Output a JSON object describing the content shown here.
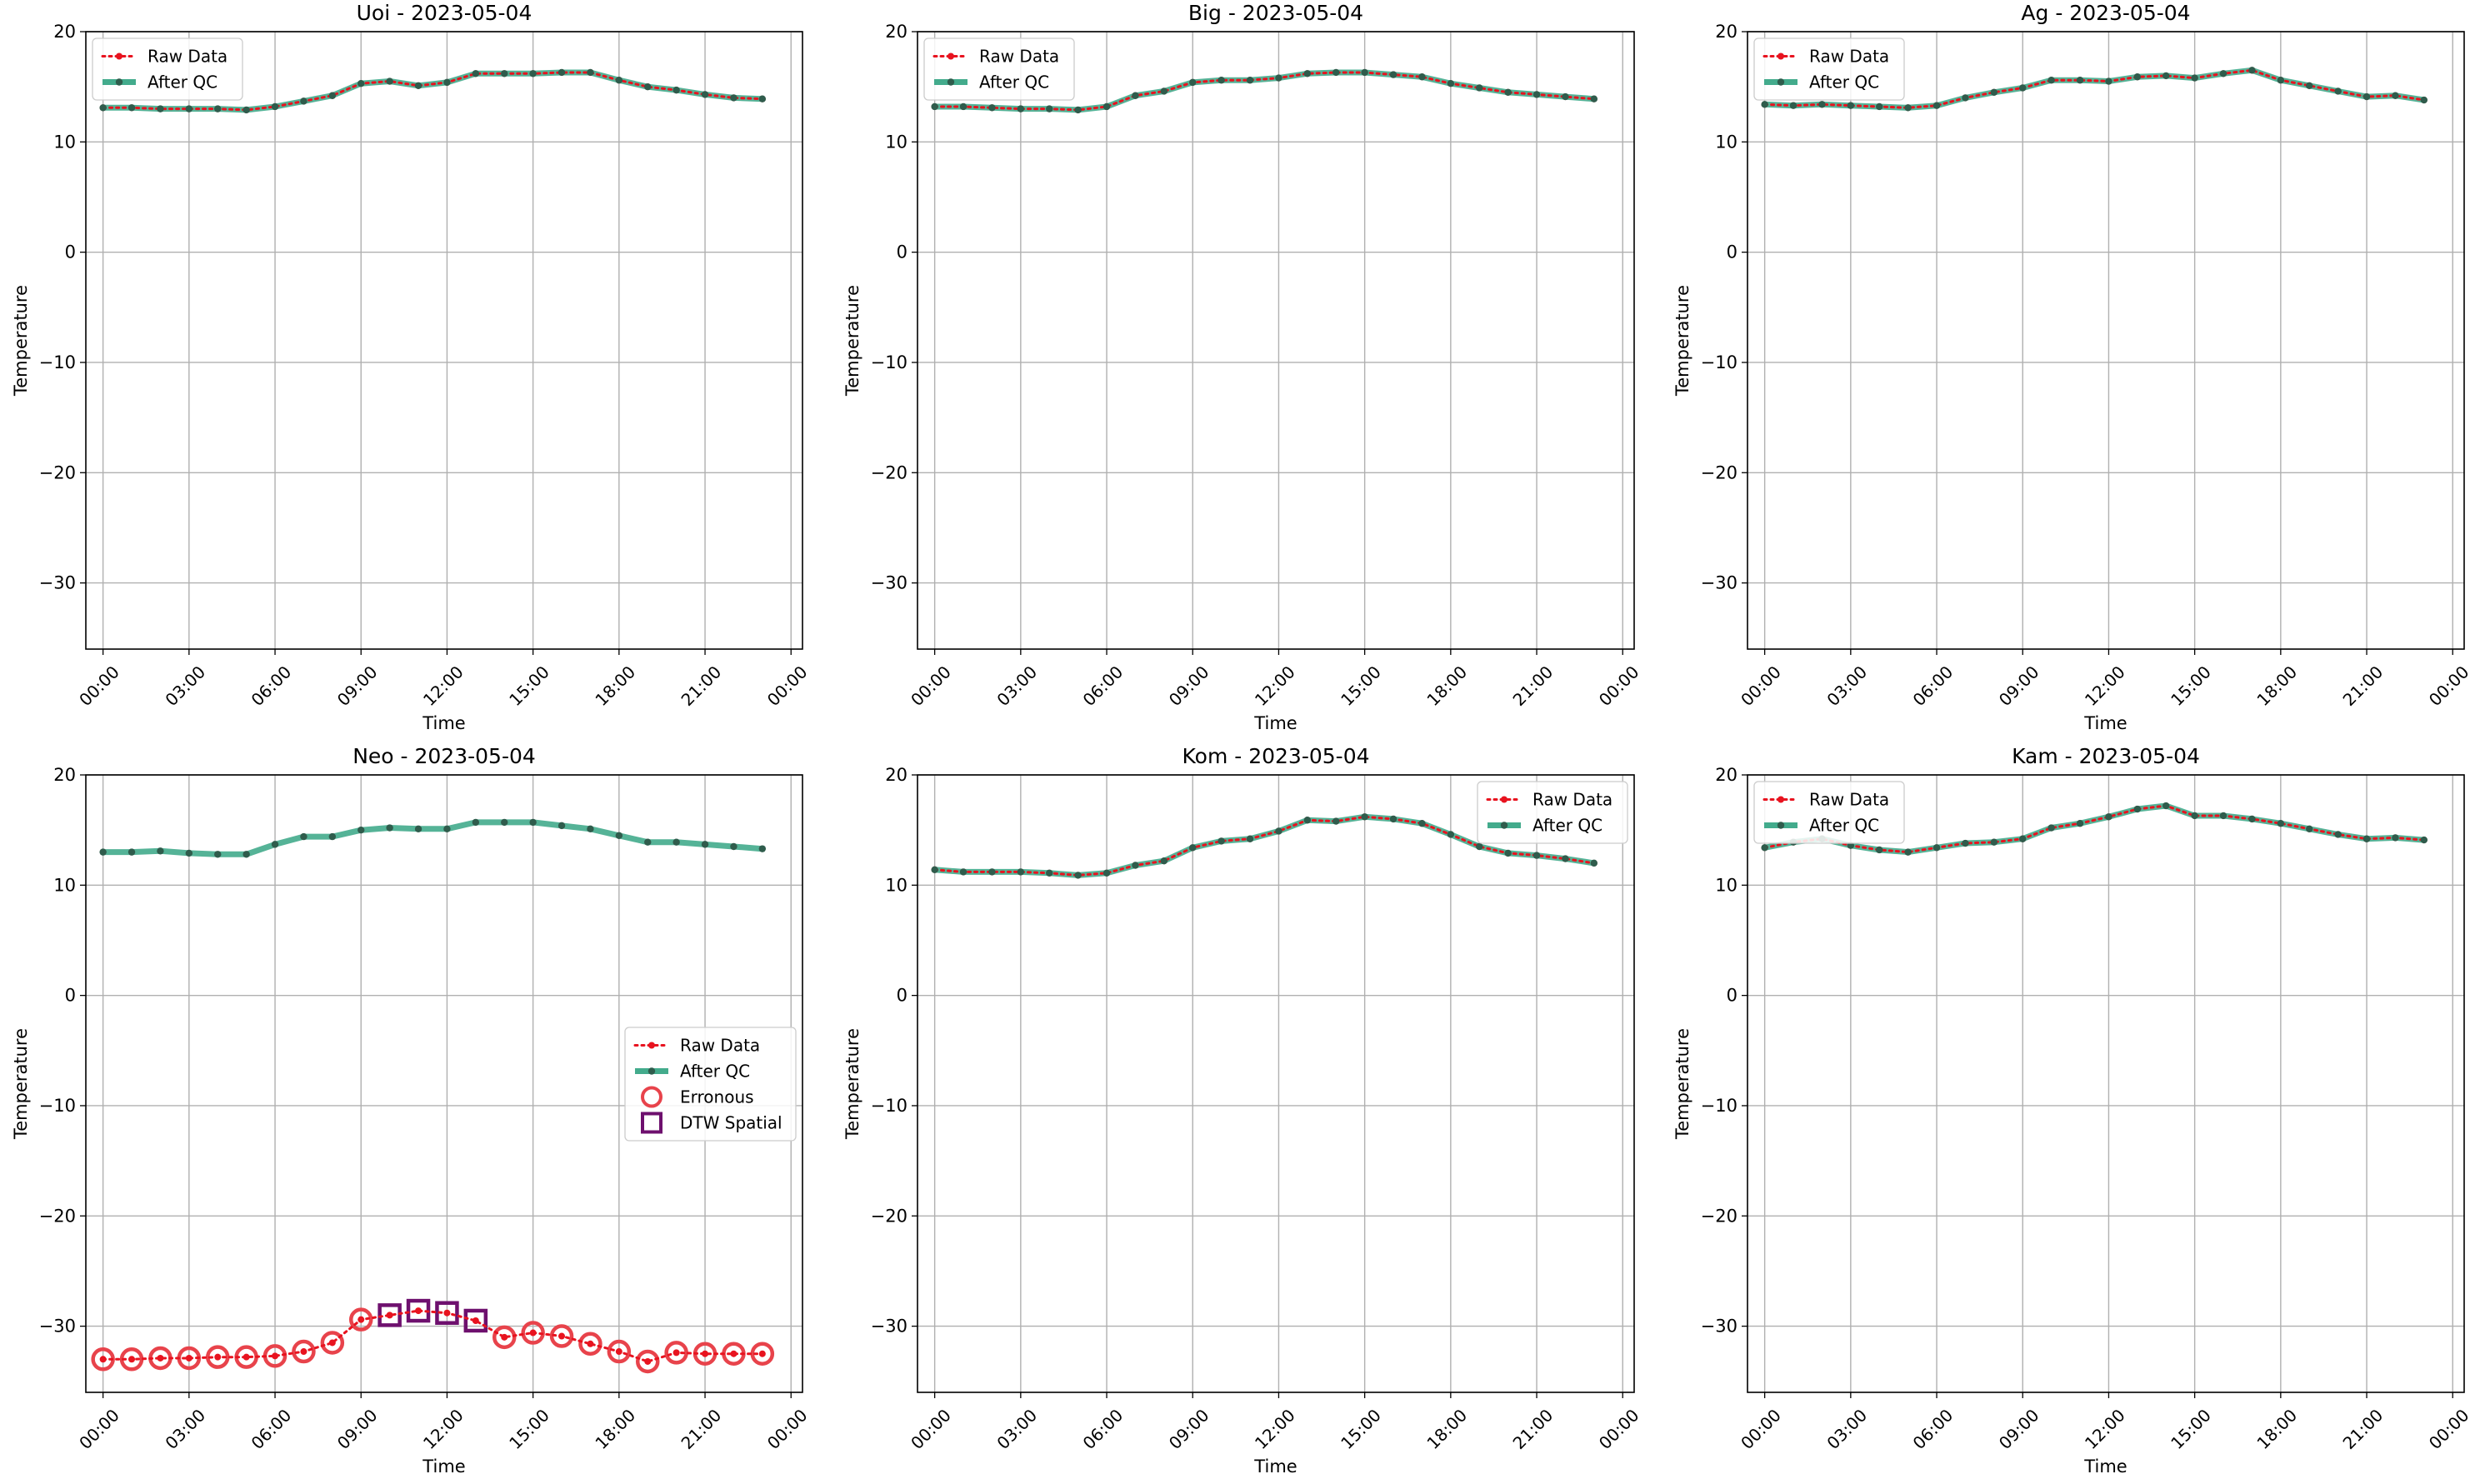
{
  "chart_data": [
    {
      "type": "line",
      "title": "Uoi - 2023-05-04",
      "xlabel": "Time",
      "ylabel": "Temperature",
      "ylim": [
        -36,
        20
      ],
      "xlim": [
        -0.6,
        24.4
      ],
      "xticks": [
        0,
        3,
        6,
        9,
        12,
        15,
        18,
        21,
        24
      ],
      "xtick_labels": [
        "00:00",
        "03:00",
        "06:00",
        "09:00",
        "12:00",
        "15:00",
        "18:00",
        "21:00",
        "00:00"
      ],
      "yticks": [
        20,
        10,
        0,
        -10,
        -20,
        -30
      ],
      "ytick_labels": [
        "20",
        "10",
        "0",
        "−10",
        "−20",
        "−30"
      ],
      "grid": true,
      "legend_position": "top-left",
      "legend": [
        "Raw Data",
        "After QC"
      ],
      "x": [
        0,
        1,
        2,
        3,
        4,
        5,
        6,
        7,
        8,
        9,
        10,
        11,
        12,
        13,
        14,
        15,
        16,
        17,
        18,
        19,
        20,
        21,
        22,
        23
      ],
      "series": [
        {
          "name": "Raw Data",
          "values": [
            13.1,
            13.1,
            13.0,
            13.0,
            13.0,
            12.9,
            13.2,
            13.7,
            14.2,
            15.3,
            15.5,
            15.1,
            15.4,
            16.2,
            16.2,
            16.2,
            16.3,
            16.3,
            15.6,
            15.0,
            14.7,
            14.3,
            14.0,
            13.9
          ]
        },
        {
          "name": "After QC",
          "values": [
            13.1,
            13.1,
            13.0,
            13.0,
            13.0,
            12.9,
            13.2,
            13.7,
            14.2,
            15.3,
            15.5,
            15.1,
            15.4,
            16.2,
            16.2,
            16.2,
            16.3,
            16.3,
            15.6,
            15.0,
            14.7,
            14.3,
            14.0,
            13.9
          ]
        }
      ]
    },
    {
      "type": "line",
      "title": "Big - 2023-05-04",
      "xlabel": "Time",
      "ylabel": "Temperature",
      "ylim": [
        -36,
        20
      ],
      "xlim": [
        -0.6,
        24.4
      ],
      "xticks": [
        0,
        3,
        6,
        9,
        12,
        15,
        18,
        21,
        24
      ],
      "xtick_labels": [
        "00:00",
        "03:00",
        "06:00",
        "09:00",
        "12:00",
        "15:00",
        "18:00",
        "21:00",
        "00:00"
      ],
      "yticks": [
        20,
        10,
        0,
        -10,
        -20,
        -30
      ],
      "ytick_labels": [
        "20",
        "10",
        "0",
        "−10",
        "−20",
        "−30"
      ],
      "grid": true,
      "legend_position": "top-left",
      "legend": [
        "Raw Data",
        "After QC"
      ],
      "x": [
        0,
        1,
        2,
        3,
        4,
        5,
        6,
        7,
        8,
        9,
        10,
        11,
        12,
        13,
        14,
        15,
        16,
        17,
        18,
        19,
        20,
        21,
        22,
        23
      ],
      "series": [
        {
          "name": "Raw Data",
          "values": [
            13.2,
            13.2,
            13.1,
            13.0,
            13.0,
            12.9,
            13.2,
            14.2,
            14.6,
            15.4,
            15.6,
            15.6,
            15.8,
            16.2,
            16.3,
            16.3,
            16.1,
            15.9,
            15.3,
            14.9,
            14.5,
            14.3,
            14.1,
            13.9
          ]
        },
        {
          "name": "After QC",
          "values": [
            13.2,
            13.2,
            13.1,
            13.0,
            13.0,
            12.9,
            13.2,
            14.2,
            14.6,
            15.4,
            15.6,
            15.6,
            15.8,
            16.2,
            16.3,
            16.3,
            16.1,
            15.9,
            15.3,
            14.9,
            14.5,
            14.3,
            14.1,
            13.9
          ]
        }
      ]
    },
    {
      "type": "line",
      "title": "Ag - 2023-05-04",
      "xlabel": "Time",
      "ylabel": "Temperature",
      "ylim": [
        -36,
        20
      ],
      "xlim": [
        -0.6,
        24.4
      ],
      "xticks": [
        0,
        3,
        6,
        9,
        12,
        15,
        18,
        21,
        24
      ],
      "xtick_labels": [
        "00:00",
        "03:00",
        "06:00",
        "09:00",
        "12:00",
        "15:00",
        "18:00",
        "21:00",
        "00:00"
      ],
      "yticks": [
        20,
        10,
        0,
        -10,
        -20,
        -30
      ],
      "ytick_labels": [
        "20",
        "10",
        "0",
        "−10",
        "−20",
        "−30"
      ],
      "grid": true,
      "legend_position": "top-left",
      "legend": [
        "Raw Data",
        "After QC"
      ],
      "x": [
        0,
        1,
        2,
        3,
        4,
        5,
        6,
        7,
        8,
        9,
        10,
        11,
        12,
        13,
        14,
        15,
        16,
        17,
        18,
        19,
        20,
        21,
        22,
        23
      ],
      "series": [
        {
          "name": "Raw Data",
          "values": [
            13.4,
            13.3,
            13.4,
            13.3,
            13.2,
            13.1,
            13.3,
            14.0,
            14.5,
            14.9,
            15.6,
            15.6,
            15.5,
            15.9,
            16.0,
            15.8,
            16.2,
            16.5,
            15.6,
            15.1,
            14.6,
            14.1,
            14.2,
            13.8
          ]
        },
        {
          "name": "After QC",
          "values": [
            13.4,
            13.3,
            13.4,
            13.3,
            13.2,
            13.1,
            13.3,
            14.0,
            14.5,
            14.9,
            15.6,
            15.6,
            15.5,
            15.9,
            16.0,
            15.8,
            16.2,
            16.5,
            15.6,
            15.1,
            14.6,
            14.1,
            14.2,
            13.8
          ]
        }
      ]
    },
    {
      "type": "line",
      "title": "Neo - 2023-05-04",
      "xlabel": "Time",
      "ylabel": "Temperature",
      "ylim": [
        -36,
        20
      ],
      "xlim": [
        -0.6,
        24.4
      ],
      "xticks": [
        0,
        3,
        6,
        9,
        12,
        15,
        18,
        21,
        24
      ],
      "xtick_labels": [
        "00:00",
        "03:00",
        "06:00",
        "09:00",
        "12:00",
        "15:00",
        "18:00",
        "21:00",
        "00:00"
      ],
      "yticks": [
        20,
        10,
        0,
        -10,
        -20,
        -30
      ],
      "ytick_labels": [
        "20",
        "10",
        "0",
        "−10",
        "−20",
        "−30"
      ],
      "grid": true,
      "legend_position": "center-right",
      "legend": [
        "Raw Data",
        "After QC",
        "Erronous",
        "DTW Spatial"
      ],
      "x": [
        0,
        1,
        2,
        3,
        4,
        5,
        6,
        7,
        8,
        9,
        10,
        11,
        12,
        13,
        14,
        15,
        16,
        17,
        18,
        19,
        20,
        21,
        22,
        23
      ],
      "series": [
        {
          "name": "Raw Data",
          "values": [
            -33.0,
            -33.0,
            -32.9,
            -32.9,
            -32.8,
            -32.8,
            -32.7,
            -32.3,
            -31.5,
            -29.4,
            -29.0,
            -28.6,
            -28.8,
            -29.5,
            -31.0,
            -30.6,
            -30.9,
            -31.6,
            -32.3,
            -33.2,
            -32.4,
            -32.5,
            -32.5,
            -32.5
          ]
        },
        {
          "name": "After QC",
          "values": [
            13.0,
            13.0,
            13.1,
            12.9,
            12.8,
            12.8,
            13.7,
            14.4,
            14.4,
            15.0,
            15.2,
            15.1,
            15.1,
            15.7,
            15.7,
            15.7,
            15.4,
            15.1,
            14.5,
            13.9,
            13.9,
            13.7,
            13.5,
            13.3
          ]
        }
      ],
      "flags": [
        {
          "name": "Erronous",
          "x": [
            0,
            1,
            2,
            3,
            4,
            5,
            6,
            7,
            8,
            9,
            14,
            15,
            16,
            17,
            18,
            19,
            20,
            21,
            22,
            23
          ]
        },
        {
          "name": "DTW Spatial",
          "x": [
            10,
            11,
            12,
            13
          ]
        }
      ]
    },
    {
      "type": "line",
      "title": "Kom - 2023-05-04",
      "xlabel": "Time",
      "ylabel": "Temperature",
      "ylim": [
        -36,
        20
      ],
      "xlim": [
        -0.6,
        24.4
      ],
      "xticks": [
        0,
        3,
        6,
        9,
        12,
        15,
        18,
        21,
        24
      ],
      "xtick_labels": [
        "00:00",
        "03:00",
        "06:00",
        "09:00",
        "12:00",
        "15:00",
        "18:00",
        "21:00",
        "00:00"
      ],
      "yticks": [
        20,
        10,
        0,
        -10,
        -20,
        -30
      ],
      "ytick_labels": [
        "20",
        "10",
        "0",
        "−10",
        "−20",
        "−30"
      ],
      "grid": true,
      "legend_position": "top-right",
      "legend": [
        "Raw Data",
        "After QC"
      ],
      "x": [
        0,
        1,
        2,
        3,
        4,
        5,
        6,
        7,
        8,
        9,
        10,
        11,
        12,
        13,
        14,
        15,
        16,
        17,
        18,
        19,
        20,
        21,
        22,
        23
      ],
      "series": [
        {
          "name": "Raw Data",
          "values": [
            11.4,
            11.2,
            11.2,
            11.2,
            11.1,
            10.9,
            11.1,
            11.8,
            12.2,
            13.4,
            14.0,
            14.2,
            14.9,
            15.9,
            15.8,
            16.2,
            16.0,
            15.6,
            14.6,
            13.5,
            12.9,
            12.7,
            12.4,
            12.0
          ]
        },
        {
          "name": "After QC",
          "values": [
            11.4,
            11.2,
            11.2,
            11.2,
            11.1,
            10.9,
            11.1,
            11.8,
            12.2,
            13.4,
            14.0,
            14.2,
            14.9,
            15.9,
            15.8,
            16.2,
            16.0,
            15.6,
            14.6,
            13.5,
            12.9,
            12.7,
            12.4,
            12.0
          ]
        }
      ]
    },
    {
      "type": "line",
      "title": "Kam - 2023-05-04",
      "xlabel": "Time",
      "ylabel": "Temperature",
      "ylim": [
        -36,
        20
      ],
      "xlim": [
        -0.6,
        24.4
      ],
      "xticks": [
        0,
        3,
        6,
        9,
        12,
        15,
        18,
        21,
        24
      ],
      "xtick_labels": [
        "00:00",
        "03:00",
        "06:00",
        "09:00",
        "12:00",
        "15:00",
        "18:00",
        "21:00",
        "00:00"
      ],
      "yticks": [
        20,
        10,
        0,
        -10,
        -20,
        -30
      ],
      "ytick_labels": [
        "20",
        "10",
        "0",
        "−10",
        "−20",
        "−30"
      ],
      "grid": true,
      "legend_position": "top-left",
      "legend": [
        "Raw Data",
        "After QC"
      ],
      "x": [
        0,
        1,
        2,
        3,
        4,
        5,
        6,
        7,
        8,
        9,
        10,
        11,
        12,
        13,
        14,
        15,
        16,
        17,
        18,
        19,
        20,
        21,
        22,
        23
      ],
      "series": [
        {
          "name": "Raw Data",
          "values": [
            13.4,
            13.9,
            14.2,
            13.6,
            13.2,
            13.0,
            13.4,
            13.8,
            13.9,
            14.2,
            15.2,
            15.6,
            16.2,
            16.9,
            17.2,
            16.3,
            16.3,
            16.0,
            15.6,
            15.1,
            14.6,
            14.2,
            14.3,
            14.1
          ]
        },
        {
          "name": "After QC",
          "values": [
            13.4,
            13.9,
            14.2,
            13.6,
            13.2,
            13.0,
            13.4,
            13.8,
            13.9,
            14.2,
            15.2,
            15.6,
            16.2,
            16.9,
            17.2,
            16.3,
            16.3,
            16.0,
            15.6,
            15.1,
            14.6,
            14.2,
            14.3,
            14.1
          ]
        }
      ]
    }
  ],
  "colors": {
    "raw": "#e8131f",
    "qc_line": "#43ab8c",
    "qc_marker": "#2f5c4c",
    "erroneous": "#e8434b",
    "dtw": "#6e106e",
    "grid": "#b0b0b0",
    "axis": "#000000",
    "legend_border": "#cccccc"
  }
}
